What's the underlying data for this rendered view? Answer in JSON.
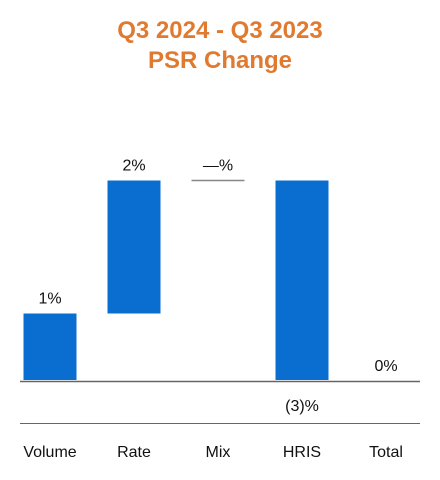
{
  "chart_data": {
    "type": "waterfall",
    "title_line1": "Q3 2024 - Q3 2023",
    "title_line2": "PSR Change",
    "categories": [
      "Volume",
      "Rate",
      "Mix",
      "HRIS",
      "Total"
    ],
    "values": [
      1,
      2,
      0,
      -3,
      0
    ],
    "data_labels": [
      "1%",
      "2%",
      "—%",
      "(3)%",
      "0%"
    ],
    "grid": false,
    "legend": "none"
  },
  "colors": {
    "title": "#E07A30",
    "bar": "#0A6ED1",
    "axis": "#666666",
    "mix_marker": "#888888",
    "text": "#111111"
  }
}
